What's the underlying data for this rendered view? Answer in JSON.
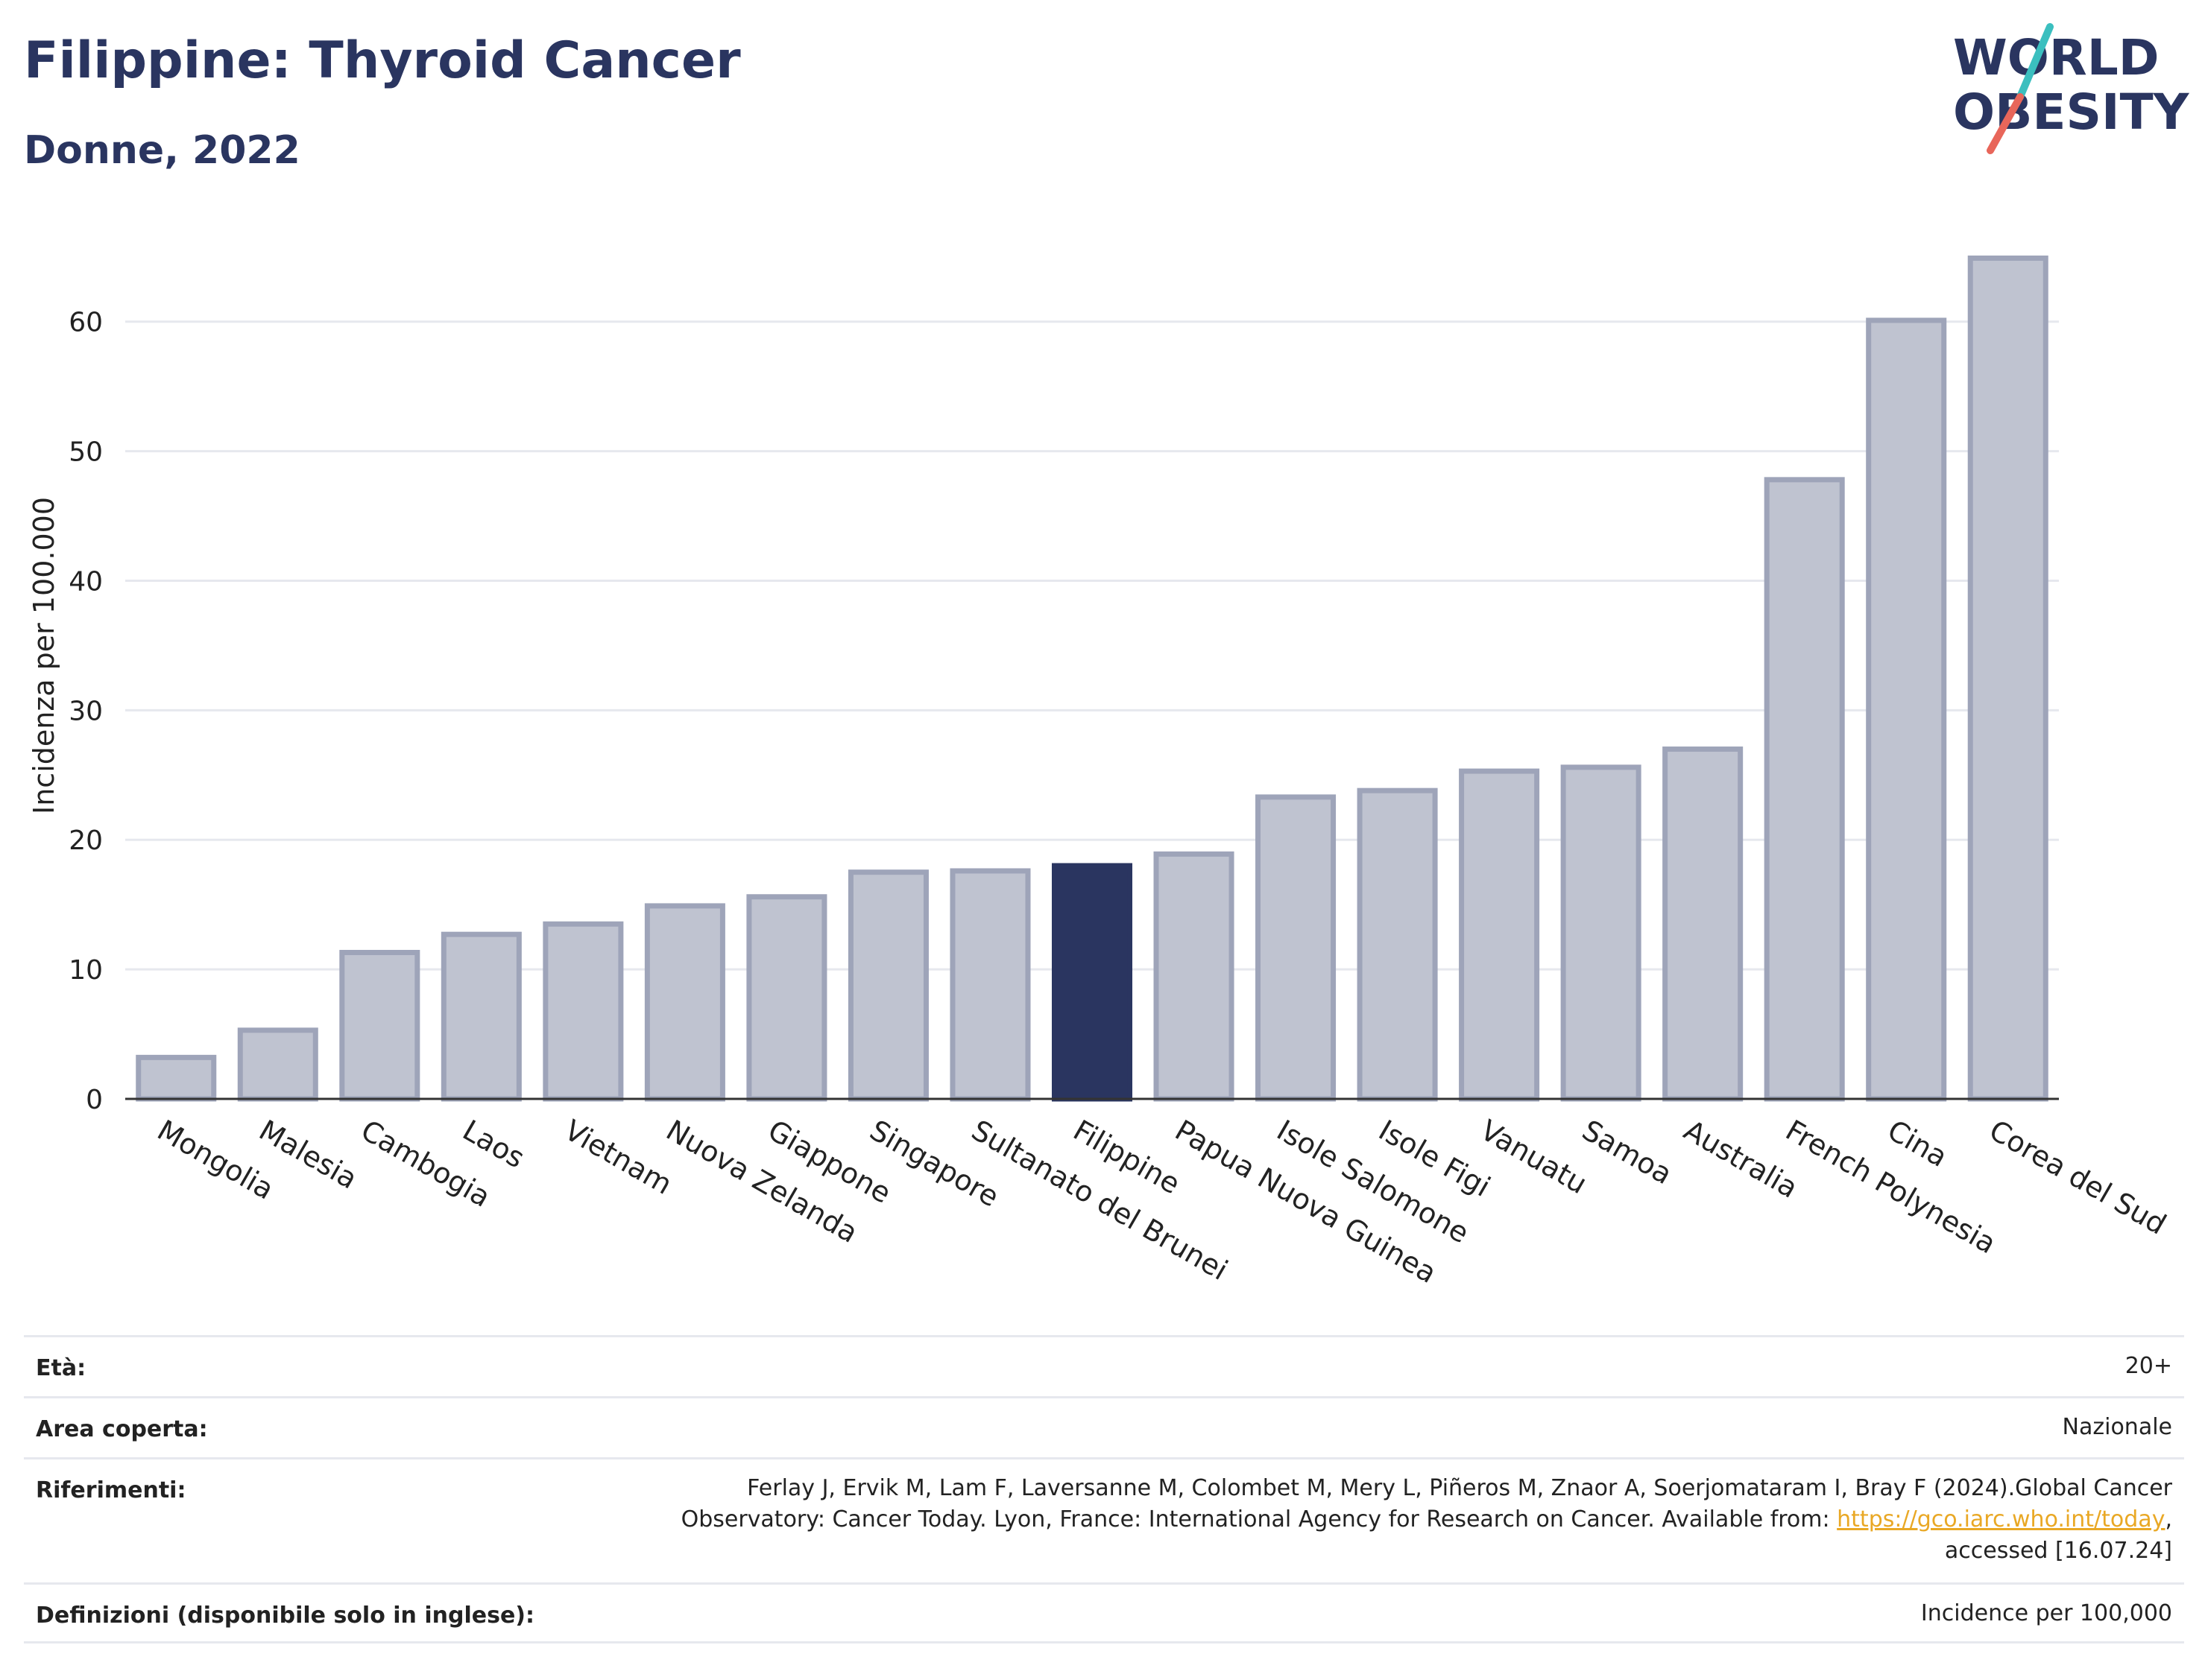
{
  "header": {
    "title": "Filippine: Thyroid Cancer",
    "subtitle": "Donne, 2022"
  },
  "logo": {
    "line1": "WORLD",
    "line2": "OBESITY",
    "accent_teal": "#3bbfbf",
    "accent_red": "#e8665a"
  },
  "colors": {
    "bar": "#bfc3d0",
    "bar_border": "#9ea4b9",
    "highlight": "#2a3560",
    "grid": "#e6e8ee"
  },
  "chart_data": {
    "type": "bar",
    "title": "Filippine: Thyroid Cancer",
    "subtitle": "Donne, 2022",
    "ylabel": "Incidenza per 100.000",
    "xlabel": "",
    "ylim": [
      0,
      67
    ],
    "yticks": [
      0,
      10,
      20,
      30,
      40,
      50,
      60
    ],
    "grid": true,
    "highlight": "Filippine",
    "categories": [
      "Mongolia",
      "Malesia",
      "Cambogia",
      "Laos",
      "Vietnam",
      "Nuova Zelanda",
      "Giappone",
      "Singapore",
      "Sultanato del Brunei",
      "Filippine",
      "Papua Nuova Guinea",
      "Isole Salomone",
      "Isole Figi",
      "Vanuatu",
      "Samoa",
      "Australia",
      "French Polynesia",
      "Cina",
      "Corea del Sud"
    ],
    "values": [
      3.2,
      5.3,
      11.3,
      12.7,
      13.5,
      14.9,
      15.6,
      17.5,
      17.6,
      18.0,
      18.9,
      23.3,
      23.8,
      25.3,
      25.6,
      27.0,
      47.8,
      60.1,
      64.9
    ]
  },
  "meta": {
    "age_label": "Età:",
    "age_value": "20+",
    "area_label": "Area coperta:",
    "area_value": "Nazionale",
    "ref_label": "Riferimenti:",
    "ref_line1": "Ferlay J, Ervik M, Lam F, Laversanne M, Colombet M, Mery L, Piñeros M, Znaor A, Soerjomataram I, Bray F (2024).Global Cancer",
    "ref_line2_pre": "Observatory: Cancer Today. Lyon, France: International Agency for Research on Cancer. Available from: ",
    "ref_link": "https://gco.iarc.who.int/today",
    "ref_line2_post": ",",
    "ref_line3": "accessed [16.07.24]",
    "def_label": "Definizioni (disponibile solo in inglese):",
    "def_value": "Incidence per 100,000"
  }
}
